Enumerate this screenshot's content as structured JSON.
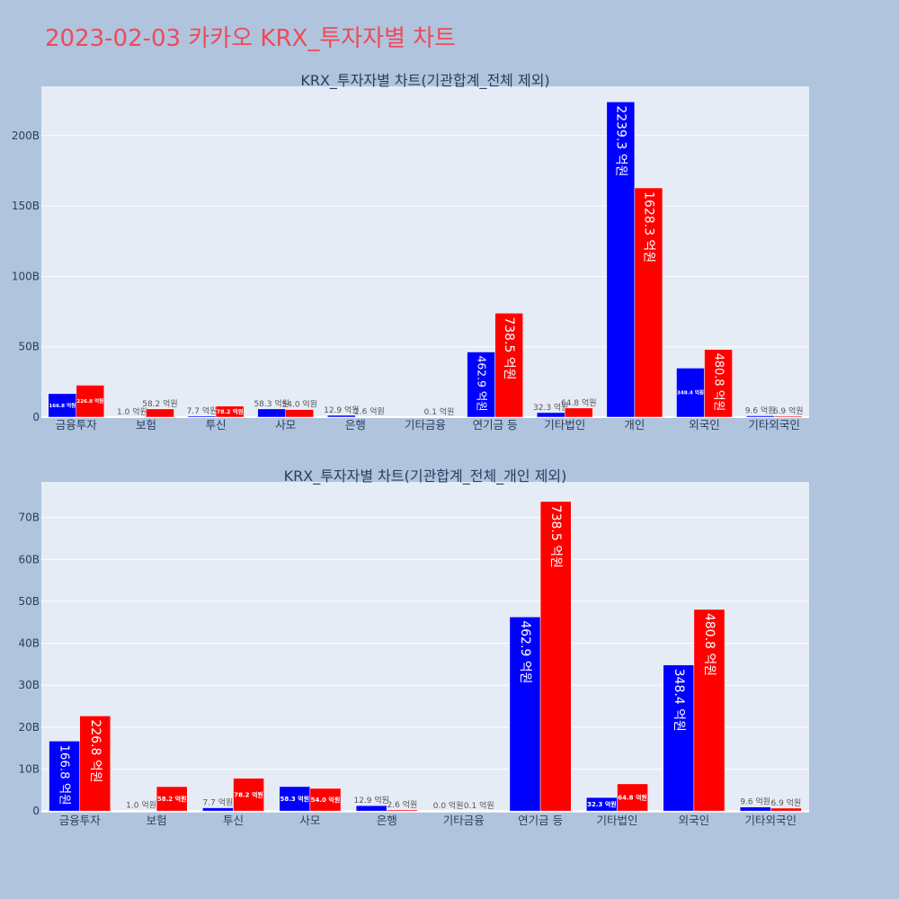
{
  "page": {
    "title": "2023-02-03 카카오 KRX_투자자별 차트"
  },
  "colors": {
    "buy": "#0000ff",
    "sell": "#ff0000",
    "plot_bg": "#e5ecf6",
    "paper_bg": "#b0c4de",
    "title": "#ee4a5a",
    "text": "#2a3f5f",
    "outside_label": "#555555"
  },
  "chart_data": [
    {
      "type": "bar",
      "title": "KRX_투자자별 차트(기관합계_전체 제외)",
      "categories": [
        "금융투자",
        "보험",
        "투신",
        "사모",
        "은행",
        "기타금융",
        "연기금 등",
        "기타법인",
        "개인",
        "외국인",
        "기타외국인"
      ],
      "series": [
        {
          "values": [
            16.68,
            0.1,
            0.77,
            5.83,
            1.29,
            0.0,
            46.29,
            3.23,
            223.93,
            34.84,
            0.96
          ],
          "labels": [
            "166.8 억원",
            "1.0 억원",
            "7.7 억원",
            "58.3 억원",
            "12.9 억원",
            "",
            "462.9 억원",
            "32.3 억원",
            "2239.3 억원",
            "348.4 억원",
            "9.6 억원"
          ]
        },
        {
          "values": [
            22.68,
            5.82,
            7.82,
            5.4,
            0.26,
            0.01,
            73.85,
            6.48,
            162.83,
            48.08,
            0.69
          ],
          "labels": [
            "226.8 억원",
            "58.2 억원",
            "78.2 억원",
            "54.0 억원",
            "2.6 억원",
            "0.1 억원",
            "738.5 억원",
            "64.8 억원",
            "1628.3 억원",
            "480.8 억원",
            "6.9 억원"
          ]
        }
      ],
      "ylim": [
        0,
        235
      ],
      "yticks": [
        0,
        50,
        100,
        150,
        200
      ],
      "ytick_labels": [
        "0",
        "50B",
        "100B",
        "150B",
        "200B"
      ],
      "xlabel": "",
      "ylabel": "",
      "grid": true,
      "legend": "none"
    },
    {
      "type": "bar",
      "title": "KRX_투자자별 차트(기관합계_전체_개인 제외)",
      "categories": [
        "금융투자",
        "보험",
        "투신",
        "사모",
        "은행",
        "기타금융",
        "연기금 등",
        "기타법인",
        "외국인",
        "기타외국인"
      ],
      "series": [
        {
          "values": [
            16.68,
            0.1,
            0.77,
            5.83,
            1.29,
            0.0,
            46.29,
            3.23,
            34.84,
            0.96
          ],
          "labels": [
            "166.8 억원",
            "1.0 억원",
            "7.7 억원",
            "58.3 억원",
            "12.9 억원",
            "0.0 억원",
            "462.9 억원",
            "32.3 억원",
            "348.4 억원",
            "9.6 억원"
          ]
        },
        {
          "values": [
            22.68,
            5.82,
            7.82,
            5.4,
            0.26,
            0.01,
            73.85,
            6.48,
            48.08,
            0.69
          ],
          "labels": [
            "226.8 억원",
            "58.2 억원",
            "78.2 억원",
            "54.0 억원",
            "2.6 억원",
            "0.1 억원",
            "738.5 억원",
            "64.8 억원",
            "480.8 억원",
            "6.9 억원"
          ]
        }
      ],
      "ylim": [
        -0.4,
        78.5
      ],
      "yticks": [
        0,
        10,
        20,
        30,
        40,
        50,
        60,
        70
      ],
      "ytick_labels": [
        "0",
        "10B",
        "20B",
        "30B",
        "40B",
        "50B",
        "60B",
        "70B"
      ],
      "xlabel": "",
      "ylabel": "",
      "grid": true,
      "legend": "none"
    }
  ]
}
